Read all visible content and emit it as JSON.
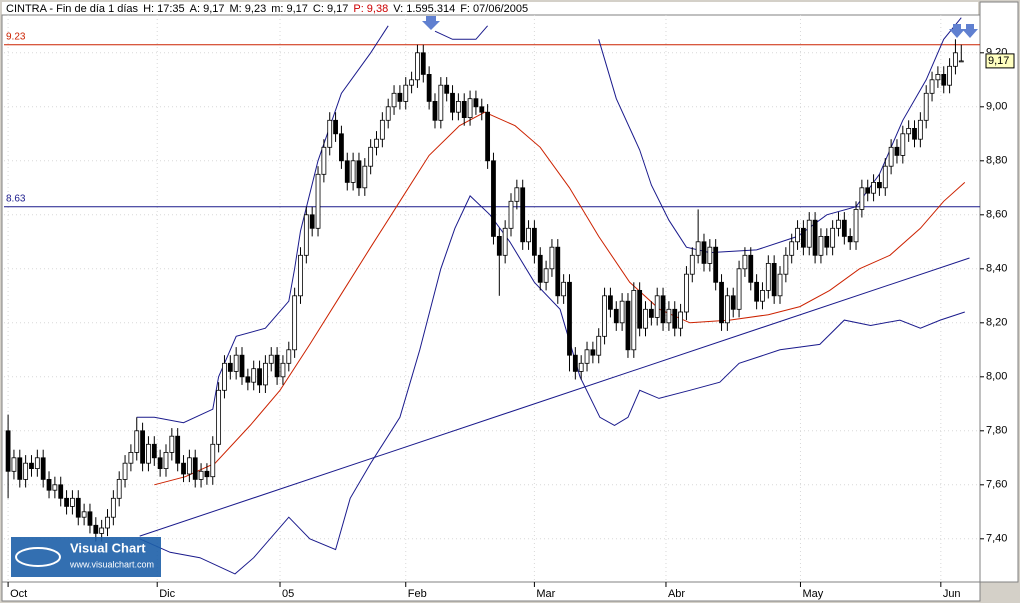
{
  "chart_data": {
    "type": "candlestick",
    "header": [
      {
        "text": "CINTRA - Fin de día 1 días",
        "color": "#000000"
      },
      {
        "text": "H: 17:35",
        "color": "#000000"
      },
      {
        "text": "A: 9,17",
        "color": "#000000"
      },
      {
        "text": "M: 9,23",
        "color": "#000000"
      },
      {
        "text": "m: 9,17",
        "color": "#000000"
      },
      {
        "text": "C: 9,17",
        "color": "#000000"
      },
      {
        "text": "P: 9,38",
        "color": "#cc0000"
      },
      {
        "text": "V: 1.595.314",
        "color": "#000000"
      },
      {
        "text": "F: 07/06/2005",
        "color": "#000000"
      }
    ],
    "logo": {
      "title": "Visual Chart",
      "url": "www.visualchart.com"
    },
    "last_price_label": "9,17",
    "xlim": [
      -0.7,
      166.2
    ],
    "ylim": [
      7.24,
      9.34
    ],
    "xticks": [
      {
        "value": 0,
        "label": "Oct"
      },
      {
        "value": 25.5,
        "label": "Dic"
      },
      {
        "value": 46.5,
        "label": "05"
      },
      {
        "value": 68,
        "label": "Feb"
      },
      {
        "value": 90,
        "label": "Mar"
      },
      {
        "value": 112.5,
        "label": "Abr"
      },
      {
        "value": 135.5,
        "label": "May"
      },
      {
        "value": 159.5,
        "label": "Jun"
      }
    ],
    "yticks": [
      {
        "value": 7.4,
        "label": "7,40"
      },
      {
        "value": 7.6,
        "label": "7,60"
      },
      {
        "value": 7.8,
        "label": "7,80"
      },
      {
        "value": 8.0,
        "label": "8,00"
      },
      {
        "value": 8.2,
        "label": "8,20"
      },
      {
        "value": 8.4,
        "label": "8,40"
      },
      {
        "value": 8.6,
        "label": "8,60"
      },
      {
        "value": 8.8,
        "label": "8,80"
      },
      {
        "value": 9.0,
        "label": "9,00"
      },
      {
        "value": 9.2,
        "label": "9,20"
      }
    ],
    "grid": true,
    "up_color": "#ffffff",
    "down_color": "#000000",
    "open": [
      7.8,
      7.65,
      7.7,
      7.62,
      7.68,
      7.66,
      7.7,
      7.62,
      7.58,
      7.6,
      7.55,
      7.52,
      7.55,
      7.48,
      7.5,
      7.45,
      7.42,
      7.44,
      7.48,
      7.55,
      7.62,
      7.68,
      7.72,
      7.8,
      7.68,
      7.75,
      7.7,
      7.66,
      7.72,
      7.78,
      7.68,
      7.64,
      7.7,
      7.62,
      7.65,
      7.63,
      7.75,
      7.95,
      8.05,
      8.02,
      8.08,
      8.0,
      7.98,
      8.03,
      7.97,
      8.05,
      8.08,
      8.0,
      8.05,
      8.1,
      8.3,
      8.45,
      8.6,
      8.55,
      8.75,
      8.85,
      8.95,
      8.9,
      8.8,
      8.72,
      8.8,
      8.7,
      8.78,
      8.85,
      8.88,
      8.95,
      9.0,
      9.05,
      9.02,
      9.08,
      9.1,
      9.2,
      9.12,
      9.02,
      8.95,
      9.08,
      9.05,
      8.98,
      9.02,
      8.96,
      9.03,
      9.0,
      8.98,
      8.8,
      8.52,
      8.45,
      8.55,
      8.65,
      8.7,
      8.5,
      8.55,
      8.45,
      8.35,
      8.4,
      8.48,
      8.3,
      8.35,
      8.08,
      8.02,
      8.05,
      8.1,
      8.08,
      8.15,
      8.3,
      8.25,
      8.2,
      8.28,
      8.1,
      8.32,
      8.18,
      8.25,
      8.22,
      8.3,
      8.2,
      8.25,
      8.18,
      8.24,
      8.38,
      8.45,
      8.5,
      8.42,
      8.48,
      8.35,
      8.2,
      8.3,
      8.25,
      8.4,
      8.45,
      8.35,
      8.28,
      8.32,
      8.42,
      8.3,
      8.38,
      8.45,
      8.5,
      8.55,
      8.48,
      8.58,
      8.45,
      8.52,
      8.48,
      8.55,
      8.58,
      8.52,
      8.5,
      8.62,
      8.7,
      8.68,
      8.72,
      8.7,
      8.78,
      8.85,
      8.82,
      8.9,
      8.92,
      8.88,
      8.95,
      9.05,
      9.1,
      9.12,
      9.08,
      9.15,
      9.17
    ],
    "high": [
      7.86,
      7.73,
      7.73,
      7.71,
      7.71,
      7.73,
      7.73,
      7.65,
      7.63,
      7.63,
      7.58,
      7.58,
      7.58,
      7.53,
      7.53,
      7.48,
      7.47,
      7.51,
      7.58,
      7.65,
      7.71,
      7.75,
      7.85,
      7.83,
      7.78,
      7.78,
      7.73,
      7.75,
      7.81,
      7.81,
      7.71,
      7.73,
      7.73,
      7.68,
      7.68,
      7.78,
      7.98,
      8.08,
      8.08,
      8.11,
      8.11,
      8.03,
      8.06,
      8.06,
      8.08,
      8.11,
      8.11,
      8.08,
      8.13,
      8.33,
      8.48,
      8.63,
      8.63,
      8.78,
      8.88,
      8.98,
      8.98,
      8.93,
      8.83,
      8.83,
      8.83,
      8.81,
      8.88,
      8.91,
      8.98,
      9.03,
      9.08,
      9.08,
      9.11,
      9.13,
      9.23,
      9.23,
      9.15,
      9.05,
      9.11,
      9.11,
      9.08,
      9.05,
      9.05,
      9.06,
      9.06,
      9.03,
      9.01,
      8.83,
      8.55,
      8.58,
      8.68,
      8.73,
      8.73,
      8.58,
      8.58,
      8.48,
      8.43,
      8.51,
      8.51,
      8.38,
      8.38,
      8.11,
      8.08,
      8.13,
      8.13,
      8.18,
      8.33,
      8.33,
      8.28,
      8.31,
      8.31,
      8.35,
      8.35,
      8.28,
      8.28,
      8.33,
      8.33,
      8.28,
      8.28,
      8.27,
      8.41,
      8.48,
      8.62,
      8.53,
      8.51,
      8.51,
      8.38,
      8.33,
      8.33,
      8.43,
      8.48,
      8.48,
      8.38,
      8.35,
      8.45,
      8.45,
      8.41,
      8.48,
      8.53,
      8.58,
      8.58,
      8.61,
      8.61,
      8.55,
      8.55,
      8.58,
      8.61,
      8.61,
      8.55,
      8.65,
      8.73,
      8.73,
      8.75,
      8.75,
      8.81,
      8.88,
      8.88,
      8.93,
      8.95,
      8.95,
      8.98,
      9.08,
      9.13,
      9.15,
      9.15,
      9.18,
      9.25,
      9.23
    ],
    "low": [
      7.55,
      7.62,
      7.59,
      7.59,
      7.63,
      7.63,
      7.59,
      7.55,
      7.55,
      7.52,
      7.49,
      7.49,
      7.45,
      7.45,
      7.42,
      7.39,
      7.39,
      7.41,
      7.45,
      7.52,
      7.59,
      7.65,
      7.69,
      7.65,
      7.65,
      7.67,
      7.63,
      7.63,
      7.69,
      7.65,
      7.61,
      7.61,
      7.59,
      7.59,
      7.6,
      7.6,
      7.72,
      7.92,
      7.99,
      7.99,
      7.97,
      7.95,
      7.95,
      7.94,
      7.94,
      8.02,
      7.97,
      7.97,
      8.02,
      8.07,
      8.27,
      8.42,
      8.52,
      8.52,
      8.72,
      8.82,
      8.87,
      8.77,
      8.69,
      8.69,
      8.67,
      8.67,
      8.75,
      8.82,
      8.85,
      8.92,
      8.97,
      8.99,
      8.99,
      9.05,
      9.07,
      9.09,
      8.99,
      8.92,
      8.92,
      9.02,
      8.95,
      8.95,
      8.93,
      8.93,
      8.97,
      8.95,
      8.77,
      8.49,
      8.3,
      8.42,
      8.52,
      8.62,
      8.47,
      8.47,
      8.42,
      8.32,
      8.32,
      8.37,
      8.27,
      8.27,
      8.02,
      7.99,
      7.99,
      8.02,
      8.05,
      8.05,
      8.12,
      8.22,
      8.17,
      8.17,
      8.07,
      8.07,
      8.15,
      8.15,
      8.19,
      8.19,
      8.17,
      8.17,
      8.15,
      8.15,
      8.21,
      8.35,
      8.42,
      8.39,
      8.39,
      8.32,
      8.17,
      8.17,
      8.22,
      8.22,
      8.37,
      8.32,
      8.25,
      8.25,
      8.29,
      8.27,
      8.27,
      8.35,
      8.42,
      8.47,
      8.45,
      8.45,
      8.42,
      8.42,
      8.45,
      8.45,
      8.52,
      8.49,
      8.47,
      8.47,
      8.59,
      8.65,
      8.65,
      8.67,
      8.67,
      8.75,
      8.79,
      8.79,
      8.87,
      8.85,
      8.85,
      8.92,
      9.02,
      9.07,
      9.05,
      9.05,
      9.12,
      9.17
    ],
    "close": [
      7.65,
      7.7,
      7.62,
      7.68,
      7.66,
      7.7,
      7.62,
      7.58,
      7.6,
      7.55,
      7.52,
      7.55,
      7.48,
      7.5,
      7.45,
      7.42,
      7.44,
      7.48,
      7.55,
      7.62,
      7.68,
      7.72,
      7.8,
      7.68,
      7.75,
      7.7,
      7.66,
      7.72,
      7.78,
      7.68,
      7.64,
      7.7,
      7.62,
      7.65,
      7.63,
      7.75,
      7.95,
      8.05,
      8.02,
      8.08,
      8.0,
      7.98,
      8.03,
      7.97,
      8.05,
      8.08,
      8.0,
      8.05,
      8.1,
      8.3,
      8.45,
      8.6,
      8.55,
      8.75,
      8.85,
      8.95,
      8.9,
      8.8,
      8.72,
      8.8,
      8.7,
      8.78,
      8.85,
      8.88,
      8.95,
      9.0,
      9.05,
      9.02,
      9.08,
      9.1,
      9.2,
      9.12,
      9.02,
      8.95,
      9.08,
      9.05,
      8.98,
      9.02,
      8.96,
      9.03,
      9.0,
      8.98,
      8.8,
      8.52,
      8.45,
      8.55,
      8.65,
      8.7,
      8.5,
      8.55,
      8.45,
      8.35,
      8.4,
      8.48,
      8.3,
      8.35,
      8.08,
      8.02,
      8.05,
      8.1,
      8.08,
      8.15,
      8.3,
      8.25,
      8.2,
      8.28,
      8.1,
      8.32,
      8.18,
      8.25,
      8.22,
      8.3,
      8.2,
      8.25,
      8.18,
      8.24,
      8.38,
      8.45,
      8.5,
      8.42,
      8.48,
      8.35,
      8.2,
      8.3,
      8.25,
      8.4,
      8.45,
      8.35,
      8.28,
      8.32,
      8.42,
      8.3,
      8.38,
      8.45,
      8.5,
      8.55,
      8.48,
      8.58,
      8.45,
      8.52,
      8.48,
      8.55,
      8.58,
      8.52,
      8.5,
      8.62,
      8.7,
      8.68,
      8.72,
      8.7,
      8.78,
      8.85,
      8.82,
      8.9,
      8.92,
      8.88,
      8.95,
      9.05,
      9.1,
      9.12,
      9.08,
      9.15,
      9.2,
      9.17
    ],
    "overlays": [
      {
        "color": "#1a1a8c",
        "x": [
          22,
          25,
          30,
          35,
          36,
          39,
          44,
          48,
          49,
          50,
          53,
          57,
          62,
          65,
          66,
          73,
          76,
          80,
          82,
          83,
          101,
          104,
          108,
          110,
          113,
          116,
          120,
          128,
          135,
          140,
          145,
          149,
          153,
          157,
          160,
          163
        ],
        "values": [
          7.85,
          7.85,
          7.83,
          7.88,
          8.0,
          8.15,
          8.18,
          8.28,
          8.4,
          8.54,
          8.8,
          9.05,
          9.2,
          9.3,
          null,
          9.28,
          9.25,
          9.25,
          9.3,
          null,
          9.25,
          9.03,
          8.84,
          8.71,
          8.58,
          8.48,
          8.46,
          8.47,
          8.52,
          8.6,
          8.63,
          8.75,
          8.95,
          9.1,
          9.25,
          9.33
        ]
      },
      {
        "color": "#1a1a8c",
        "x": [
          22.5,
          27.7,
          32.8,
          38.8,
          42,
          48,
          51.6,
          56,
          58.5,
          62,
          67,
          70.4,
          74,
          76.4,
          79,
          82.4,
          85.8,
          90,
          94.4,
          97.8,
          101.2,
          103.7,
          106,
          108,
          111.3,
          116.6,
          121.7,
          125,
          132,
          138.8,
          143,
          147.5,
          152.5,
          156,
          159.4,
          163.6
        ],
        "values": [
          7.4,
          7.35,
          7.33,
          7.27,
          7.33,
          7.48,
          7.4,
          7.36,
          7.55,
          7.68,
          7.85,
          8.1,
          8.4,
          8.55,
          8.67,
          8.6,
          8.5,
          8.35,
          8.25,
          8.0,
          7.85,
          7.82,
          7.85,
          7.95,
          7.92,
          7.95,
          7.98,
          8.05,
          8.1,
          8.12,
          8.21,
          8.19,
          8.21,
          8.18,
          8.21,
          8.24
        ]
      },
      {
        "color": "#cc2200",
        "x": [
          25,
          30.3,
          35.4,
          41.4,
          46.5,
          51.6,
          56.8,
          62,
          67,
          72,
          77.2,
          81.5,
          86.7,
          91,
          96,
          101,
          106.3,
          111.4,
          116.6,
          123.4,
          130,
          135.4,
          140.5,
          145.6,
          150.8,
          156,
          160,
          163.6
        ],
        "values": [
          7.6,
          7.63,
          7.68,
          7.82,
          7.95,
          8.12,
          8.3,
          8.48,
          8.65,
          8.82,
          8.93,
          8.98,
          8.93,
          8.85,
          8.7,
          8.52,
          8.35,
          8.25,
          8.2,
          8.21,
          8.23,
          8.26,
          8.32,
          8.4,
          8.45,
          8.55,
          8.65,
          8.72
        ]
      }
    ],
    "trendline": {
      "color": "#1a1a8c",
      "x": [
        22.5,
        164.4
      ],
      "values": [
        7.41,
        8.44
      ]
    },
    "hlines": [
      {
        "value": 9.23,
        "color": "#cc2200"
      },
      {
        "value": 8.63,
        "color": "#1a1a8c"
      }
    ]
  }
}
